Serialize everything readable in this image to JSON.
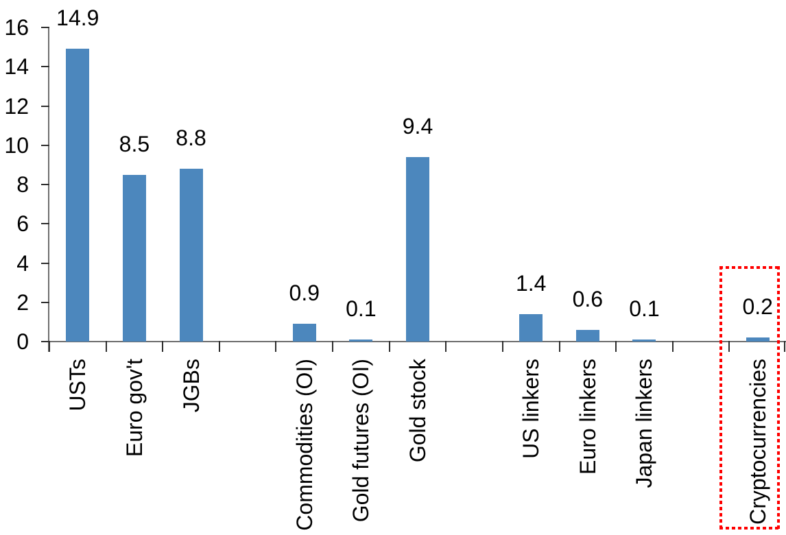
{
  "chart_data": {
    "type": "bar",
    "title": "",
    "xlabel": "",
    "ylabel": "",
    "categories": [
      "USTs",
      "Euro gov't",
      "JGBs",
      "",
      "Commodities (OI)",
      "Gold futures (OI)",
      "Gold stock",
      "",
      "US linkers",
      "Euro linkers",
      "Japan linkers",
      "",
      "Cryptocurrencies"
    ],
    "values": [
      14.9,
      8.5,
      8.8,
      null,
      0.9,
      0.1,
      9.4,
      null,
      1.4,
      0.6,
      0.1,
      null,
      0.2
    ],
    "value_labels": [
      "14.9",
      "8.5",
      "8.8",
      "",
      "0.9",
      "0.1",
      "9.4",
      "",
      "1.4",
      "0.6",
      "0.1",
      "",
      "0.2"
    ],
    "ylim": [
      0,
      16
    ],
    "y_ticks": [
      0,
      2,
      4,
      6,
      8,
      10,
      12,
      14,
      16
    ],
    "grid": false,
    "legend": null,
    "bar_color": "#4C87BD",
    "axis_line_color": "#6d6d6d",
    "tick_color": "#2e2e2e",
    "text_color": "#000000",
    "highlight": {
      "category": "Cryptocurrencies",
      "style": "dotted-rectangle",
      "color": "#FF0000"
    }
  }
}
